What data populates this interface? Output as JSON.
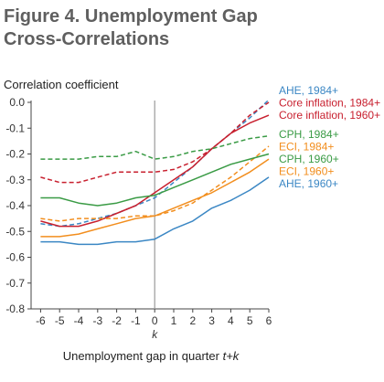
{
  "title": {
    "line1": "Figure 4. Unemployment Gap",
    "line2": "Cross-Correlations"
  },
  "chart_data": {
    "type": "line",
    "ylabel": "Correlation coefficient",
    "xlabel_prefix": "Unemployment gap in quarter ",
    "xlabel_suffix": "t+k",
    "x_tick_title": "k",
    "x": [
      -6,
      -5,
      -4,
      -3,
      -2,
      -1,
      0,
      1,
      2,
      3,
      4,
      5,
      6
    ],
    "xlim": [
      -6.5,
      6
    ],
    "ylim": [
      -0.8,
      0.0
    ],
    "y_ticks": [
      0.0,
      -0.1,
      -0.2,
      -0.3,
      -0.4,
      -0.5,
      -0.6,
      -0.7,
      -0.8
    ],
    "y_tick_labels": [
      "0.0",
      "-0.1",
      "-0.2",
      "-0.3",
      "-0.4",
      "-0.5",
      "-0.6",
      "-0.7",
      "-0.8"
    ],
    "vertical_line_at": 0,
    "legend_position": "right",
    "series": [
      {
        "name": "AHE, 1984+",
        "color": "#3b87c4",
        "dashed": true,
        "values": [
          -0.47,
          -0.48,
          -0.47,
          -0.45,
          -0.43,
          -0.4,
          -0.37,
          -0.31,
          -0.25,
          -0.18,
          -0.12,
          -0.06,
          0.01
        ]
      },
      {
        "name": "Core inflation, 1984+",
        "color": "#c8202f",
        "dashed": true,
        "values": [
          -0.29,
          -0.31,
          -0.31,
          -0.29,
          -0.27,
          -0.27,
          -0.27,
          -0.26,
          -0.23,
          -0.18,
          -0.12,
          -0.05,
          0.0
        ]
      },
      {
        "name": "Core inflation, 1960+",
        "color": "#c8202f",
        "dashed": false,
        "values": [
          -0.46,
          -0.48,
          -0.48,
          -0.46,
          -0.43,
          -0.4,
          -0.35,
          -0.3,
          -0.25,
          -0.18,
          -0.12,
          -0.08,
          -0.05
        ]
      },
      {
        "name": "CPH, 1984+",
        "color": "#3a9b45",
        "dashed": true,
        "values": [
          -0.22,
          -0.22,
          -0.22,
          -0.21,
          -0.21,
          -0.19,
          -0.22,
          -0.21,
          -0.19,
          -0.18,
          -0.16,
          -0.14,
          -0.13
        ]
      },
      {
        "name": "ECI, 1984+",
        "color": "#f28e1e",
        "dashed": true,
        "values": [
          -0.45,
          -0.46,
          -0.45,
          -0.45,
          -0.45,
          -0.44,
          -0.44,
          -0.42,
          -0.39,
          -0.34,
          -0.29,
          -0.23,
          -0.17
        ]
      },
      {
        "name": "CPH, 1960+",
        "color": "#3a9b45",
        "dashed": false,
        "values": [
          -0.37,
          -0.37,
          -0.39,
          -0.4,
          -0.39,
          -0.37,
          -0.36,
          -0.33,
          -0.3,
          -0.27,
          -0.24,
          -0.22,
          -0.2
        ]
      },
      {
        "name": "ECI, 1960+",
        "color": "#f28e1e",
        "dashed": false,
        "values": [
          -0.52,
          -0.52,
          -0.51,
          -0.49,
          -0.47,
          -0.45,
          -0.44,
          -0.41,
          -0.38,
          -0.35,
          -0.31,
          -0.27,
          -0.22
        ]
      },
      {
        "name": "AHE, 1960+",
        "color": "#3b87c4",
        "dashed": false,
        "values": [
          -0.54,
          -0.54,
          -0.55,
          -0.55,
          -0.54,
          -0.54,
          -0.53,
          -0.49,
          -0.46,
          -0.41,
          -0.38,
          -0.34,
          -0.29
        ]
      }
    ]
  }
}
